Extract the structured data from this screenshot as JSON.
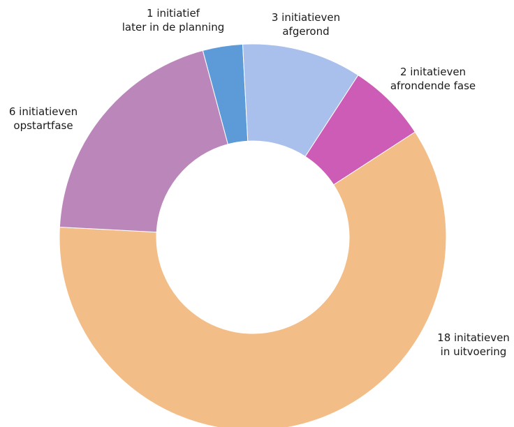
{
  "chart_data": {
    "type": "pie",
    "donut": true,
    "legend": "none",
    "slices": [
      {
        "value": 1,
        "color": "#5d9bd8",
        "label_lines": [
          "1 initiatief",
          "later in de planning"
        ]
      },
      {
        "value": 3,
        "color": "#a9bfec",
        "label_lines": [
          "3 initiatieven",
          "afgerond"
        ]
      },
      {
        "value": 2,
        "color": "#cc5cb6",
        "label_lines": [
          "2 initatieven",
          "afrondende fase"
        ]
      },
      {
        "value": 18,
        "color": "#f2bd87",
        "label_lines": [
          "18 initatieven",
          "in uitvoering"
        ]
      },
      {
        "value": 6,
        "color": "#bb87bb",
        "label_lines": [
          "6 initiatieven",
          "opstartfase"
        ]
      }
    ]
  }
}
